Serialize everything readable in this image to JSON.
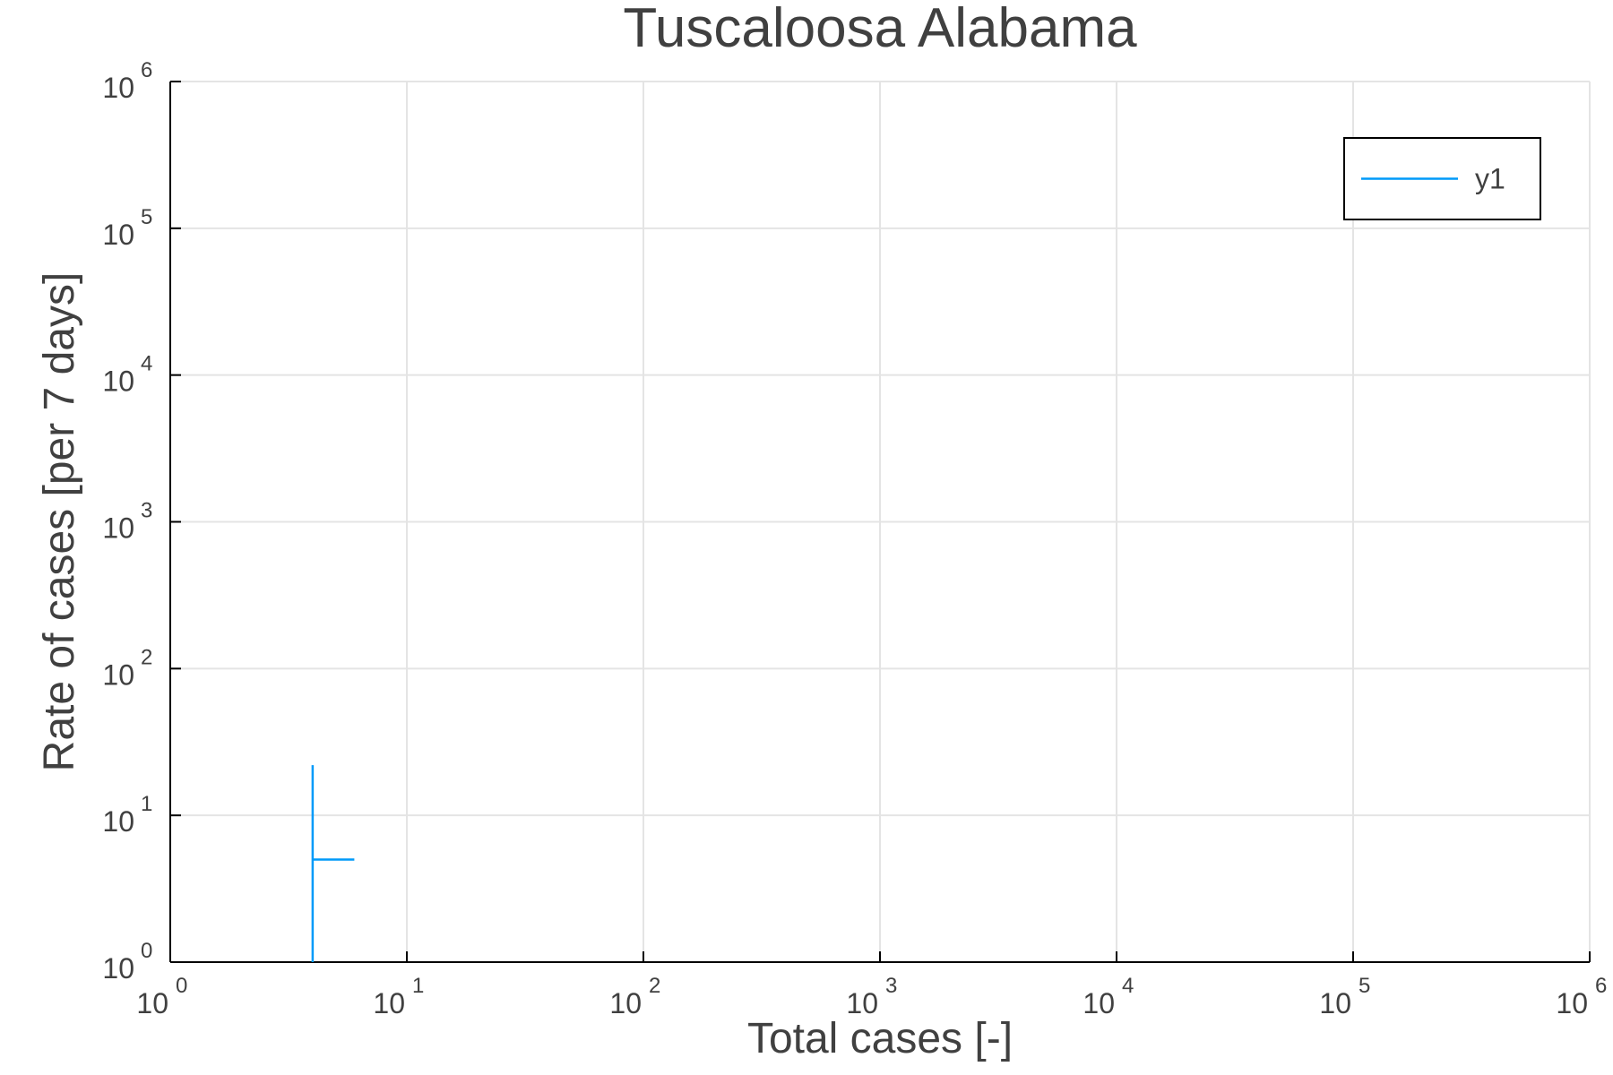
{
  "chart_data": {
    "type": "line",
    "title": "Tuscaloosa Alabama",
    "xlabel": "Total cases [-]",
    "ylabel": "Rate of cases [per 7 days]",
    "xscale": "log",
    "yscale": "log",
    "xlim": [
      1,
      1000000
    ],
    "ylim": [
      1,
      1000000
    ],
    "x_ticks": [
      {
        "base": "10",
        "exp": "0",
        "value": 1
      },
      {
        "base": "10",
        "exp": "1",
        "value": 10
      },
      {
        "base": "10",
        "exp": "2",
        "value": 100
      },
      {
        "base": "10",
        "exp": "3",
        "value": 1000
      },
      {
        "base": "10",
        "exp": "4",
        "value": 10000
      },
      {
        "base": "10",
        "exp": "5",
        "value": 100000
      },
      {
        "base": "10",
        "exp": "6",
        "value": 1000000
      }
    ],
    "y_ticks": [
      {
        "base": "10",
        "exp": "0",
        "value": 1
      },
      {
        "base": "10",
        "exp": "1",
        "value": 10
      },
      {
        "base": "10",
        "exp": "2",
        "value": 100
      },
      {
        "base": "10",
        "exp": "3",
        "value": 1000
      },
      {
        "base": "10",
        "exp": "4",
        "value": 10000
      },
      {
        "base": "10",
        "exp": "5",
        "value": 100000
      },
      {
        "base": "10",
        "exp": "6",
        "value": 1000000
      }
    ],
    "grid": true,
    "legend_position": "top-right",
    "series": [
      {
        "name": "y1",
        "color": "#009af9",
        "x": [
          4,
          4,
          4,
          6
        ],
        "y": [
          1,
          22,
          5,
          5
        ]
      }
    ]
  }
}
